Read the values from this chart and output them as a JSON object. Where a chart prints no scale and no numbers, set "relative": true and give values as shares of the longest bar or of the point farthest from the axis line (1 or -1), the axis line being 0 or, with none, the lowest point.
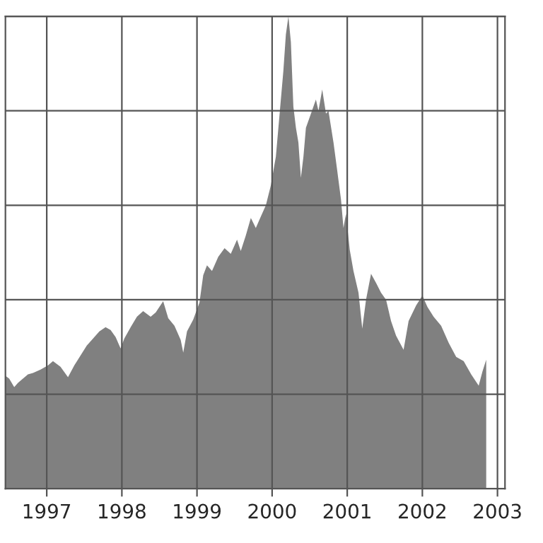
{
  "chart_data": {
    "type": "area",
    "relative": true,
    "grid": true,
    "xlim": [
      1996.45,
      2003.1
    ],
    "xticks": [
      1997,
      1998,
      1999,
      2000,
      2001,
      2002,
      2003
    ],
    "x": [
      1996.45,
      1996.5,
      1996.567,
      1996.617,
      1996.683,
      1996.75,
      1996.817,
      1996.917,
      1997.017,
      1997.083,
      1997.183,
      1997.283,
      1997.367,
      1997.45,
      1997.533,
      1997.617,
      1997.7,
      1997.783,
      1997.85,
      1997.917,
      1997.983,
      1998.033,
      1998.117,
      1998.2,
      1998.283,
      1998.383,
      1998.45,
      1998.55,
      1998.617,
      1998.7,
      1998.783,
      1998.817,
      1998.867,
      1998.95,
      1999.033,
      1999.083,
      1999.133,
      1999.2,
      1999.283,
      1999.367,
      1999.45,
      1999.533,
      1999.583,
      1999.65,
      1999.717,
      1999.783,
      1999.85,
      1999.917,
      1999.983,
      2000.05,
      2000.1,
      2000.15,
      2000.183,
      2000.217,
      2000.25,
      2000.283,
      2000.317,
      2000.35,
      2000.383,
      2000.417,
      2000.45,
      2000.517,
      2000.583,
      2000.617,
      2000.667,
      2000.717,
      2000.75,
      2000.817,
      2000.867,
      2000.917,
      2000.95,
      2000.983,
      2001.033,
      2001.083,
      2001.15,
      2001.2,
      2001.25,
      2001.317,
      2001.383,
      2001.45,
      2001.517,
      2001.583,
      2001.65,
      2001.75,
      2001.817,
      2001.917,
      2002.0,
      2002.067,
      2002.15,
      2002.25,
      2002.35,
      2002.45,
      2002.55,
      2002.65,
      2002.75,
      2002.8,
      2002.85
    ],
    "series": [
      {
        "color": "#808080",
        "values": [
          0.239,
          0.233,
          0.215,
          0.224,
          0.233,
          0.242,
          0.245,
          0.252,
          0.261,
          0.27,
          0.258,
          0.236,
          0.261,
          0.282,
          0.303,
          0.318,
          0.333,
          0.342,
          0.336,
          0.321,
          0.297,
          0.318,
          0.342,
          0.364,
          0.376,
          0.364,
          0.373,
          0.397,
          0.361,
          0.345,
          0.315,
          0.288,
          0.333,
          0.358,
          0.394,
          0.452,
          0.473,
          0.461,
          0.491,
          0.509,
          0.497,
          0.527,
          0.503,
          0.536,
          0.573,
          0.552,
          0.576,
          0.6,
          0.642,
          0.703,
          0.794,
          0.885,
          0.961,
          1,
          0.945,
          0.809,
          0.764,
          0.733,
          0.658,
          0.703,
          0.764,
          0.794,
          0.824,
          0.8,
          0.845,
          0.794,
          0.8,
          0.733,
          0.673,
          0.612,
          0.552,
          0.582,
          0.506,
          0.461,
          0.415,
          0.339,
          0.4,
          0.455,
          0.436,
          0.415,
          0.4,
          0.355,
          0.324,
          0.294,
          0.355,
          0.388,
          0.409,
          0.385,
          0.364,
          0.345,
          0.309,
          0.279,
          0.27,
          0.242,
          0.218,
          0.248,
          0.273
        ]
      }
    ]
  }
}
